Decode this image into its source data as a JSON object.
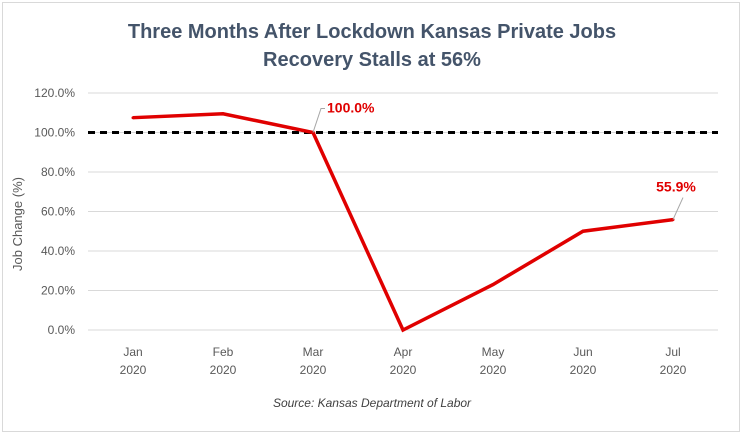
{
  "chart_data": {
    "type": "line",
    "title_lines": [
      "Three Months After Lockdown Kansas Private Jobs",
      "Recovery Stalls at 56%"
    ],
    "ylabel": "Job Change (%)",
    "xlabel": "",
    "categories": [
      {
        "month": "Jan",
        "year": "2020"
      },
      {
        "month": "Feb",
        "year": "2020"
      },
      {
        "month": "Mar",
        "year": "2020"
      },
      {
        "month": "Apr",
        "year": "2020"
      },
      {
        "month": "May",
        "year": "2020"
      },
      {
        "month": "Jun",
        "year": "2020"
      },
      {
        "month": "Jul",
        "year": "2020"
      }
    ],
    "series": [
      {
        "values": [
          107.5,
          109.5,
          100.0,
          0.0,
          23.0,
          50.0,
          55.9
        ],
        "color": "#e00000"
      }
    ],
    "reference_line": {
      "value": 100.0,
      "style": "dashed",
      "color": "#000000"
    },
    "ylim": [
      0,
      120
    ],
    "yticks": [
      0,
      20,
      40,
      60,
      80,
      100,
      120
    ],
    "ytick_labels": [
      "0.0%",
      "20.0%",
      "40.0%",
      "60.0%",
      "80.0%",
      "100.0%",
      "120.0%"
    ],
    "annotations": [
      {
        "index": 2,
        "text": "100.0%"
      },
      {
        "index": 6,
        "text": "55.9%"
      }
    ],
    "grid": true,
    "source": "Source: Kansas Department of Labor"
  }
}
